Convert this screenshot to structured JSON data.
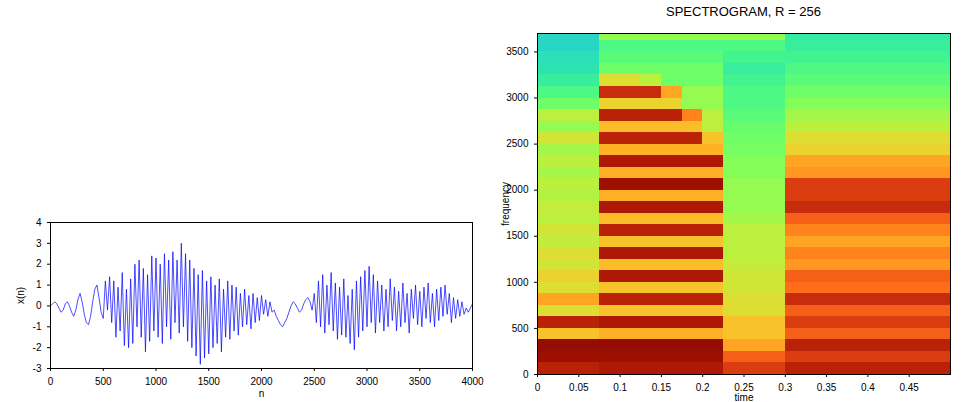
{
  "chart_data": [
    {
      "type": "line",
      "color": "#0000ff",
      "x_label": "n",
      "y_label": "x(n)",
      "xlim": [
        0,
        4000
      ],
      "ylim": [
        -3,
        4
      ],
      "xticks": [
        0,
        500,
        1000,
        1500,
        2000,
        2500,
        3000,
        3500,
        4000
      ],
      "yticks": [
        -3,
        -2,
        -1,
        0,
        1,
        2,
        3,
        4
      ],
      "x": [
        0,
        20,
        40,
        60,
        80,
        100,
        120,
        140,
        160,
        180,
        200,
        220,
        240,
        260,
        280,
        300,
        320,
        340,
        360,
        380,
        400,
        420,
        440,
        460,
        480,
        500,
        520,
        540,
        560,
        580,
        600,
        620,
        640,
        660,
        680,
        700,
        720,
        740,
        760,
        780,
        800,
        820,
        840,
        860,
        880,
        900,
        920,
        940,
        960,
        980,
        1000,
        1020,
        1040,
        1060,
        1080,
        1100,
        1120,
        1140,
        1160,
        1180,
        1200,
        1220,
        1240,
        1260,
        1280,
        1300,
        1320,
        1340,
        1360,
        1380,
        1400,
        1420,
        1440,
        1460,
        1480,
        1500,
        1520,
        1540,
        1560,
        1580,
        1600,
        1620,
        1640,
        1660,
        1680,
        1700,
        1720,
        1740,
        1760,
        1780,
        1800,
        1820,
        1840,
        1860,
        1880,
        1900,
        1920,
        1940,
        1960,
        1980,
        2000,
        2020,
        2040,
        2060,
        2080,
        2100,
        2120,
        2140,
        2160,
        2180,
        2200,
        2220,
        2240,
        2260,
        2280,
        2300,
        2320,
        2340,
        2360,
        2380,
        2400,
        2420,
        2440,
        2460,
        2480,
        2500,
        2520,
        2540,
        2560,
        2580,
        2600,
        2620,
        2640,
        2660,
        2680,
        2700,
        2720,
        2740,
        2760,
        2780,
        2800,
        2820,
        2840,
        2860,
        2880,
        2900,
        2920,
        2940,
        2960,
        2980,
        3000,
        3020,
        3040,
        3060,
        3080,
        3100,
        3120,
        3140,
        3160,
        3180,
        3200,
        3220,
        3240,
        3260,
        3280,
        3300,
        3320,
        3340,
        3360,
        3380,
        3400,
        3420,
        3440,
        3460,
        3480,
        3500,
        3520,
        3540,
        3560,
        3580,
        3600,
        3620,
        3640,
        3660,
        3680,
        3700,
        3720,
        3740,
        3760,
        3780,
        3800,
        3820,
        3840,
        3860,
        3880,
        3900,
        3920,
        3940,
        3960,
        3980,
        4000
      ],
      "values": [
        0,
        0.1,
        0.2,
        0.1,
        -0.1,
        -0.3,
        -0.2,
        0.1,
        0.2,
        0,
        -0.3,
        -0.5,
        -0.2,
        0.3,
        0.6,
        0.2,
        -0.4,
        -0.8,
        -0.9,
        -0.5,
        0.2,
        0.8,
        1.0,
        0.4,
        -0.3,
        -0.6,
        1.2,
        -0.2,
        1.4,
        -0.8,
        1.2,
        -1.5,
        0.9,
        -1.2,
        1.6,
        -1.9,
        0.8,
        -2.0,
        1.3,
        -1.8,
        2.0,
        -1.0,
        2.2,
        -1.5,
        1.8,
        -2.2,
        1.5,
        -1.7,
        2.4,
        -1.2,
        2.3,
        -1.5,
        2.0,
        -1.8,
        2.5,
        -1.0,
        2.2,
        -1.6,
        2.6,
        -0.8,
        2.2,
        -1.3,
        3.0,
        -1.0,
        2.5,
        -1.7,
        2.2,
        -2.0,
        1.8,
        -2.4,
        1.5,
        -2.8,
        1.7,
        -2.5,
        1.2,
        -2.3,
        1.4,
        -2.0,
        1.0,
        -1.8,
        1.3,
        -2.2,
        0.8,
        -1.5,
        1.2,
        -1.6,
        1.0,
        -1.2,
        0.9,
        -1.4,
        0.6,
        -1.0,
        0.8,
        -0.9,
        0.5,
        -1.1,
        0.6,
        -0.8,
        0.4,
        -0.7,
        0.5,
        -0.4,
        0.3,
        -0.5,
        0.2,
        -0.3,
        -0.2,
        -0.5,
        -0.7,
        -0.9,
        -1.0,
        -0.8,
        -0.6,
        -0.3,
        0,
        0.2,
        0.1,
        -0.1,
        -0.3,
        -0.2,
        0.1,
        0.3,
        0.4,
        0.2,
        -0.2,
        0.6,
        -0.8,
        1.2,
        -1.0,
        1.5,
        -1.3,
        1.0,
        -0.9,
        1.6,
        -1.2,
        1.1,
        -1.6,
        0.9,
        -1.4,
        1.3,
        -1.5,
        0.5,
        -1.8,
        0.8,
        -2.1,
        1.2,
        -1.5,
        1.4,
        -1.2,
        1.7,
        -1.0,
        1.9,
        -0.8,
        1.5,
        -1.3,
        1.2,
        -0.8,
        1.0,
        -1.2,
        0.8,
        -1.0,
        1.3,
        -0.7,
        0.9,
        -1.2,
        0.7,
        -1.0,
        1.1,
        -0.8,
        0.6,
        -1.3,
        0.8,
        -0.6,
        1.0,
        -0.9,
        0.7,
        -1.0,
        0.9,
        -0.6,
        1.1,
        -0.8,
        0.6,
        -1.0,
        0.8,
        -0.7,
        0.9,
        -0.5,
        1.0,
        -0.4,
        0.6,
        -0.8,
        0.4,
        -0.6,
        0.3,
        -0.5,
        0.2,
        -0.4,
        -0.1,
        -0.3,
        -0.1,
        0.1
      ]
    },
    {
      "type": "heatmap",
      "title": "SPECTROGRAM, R = 256",
      "x_label": "time",
      "y_label": "frequency",
      "xlim": [
        0,
        0.5
      ],
      "ylim": [
        0,
        3700
      ],
      "xticks": [
        0,
        0.05,
        0.1,
        0.15,
        0.2,
        0.25,
        0.3,
        0.35,
        0.4,
        0.45
      ],
      "yticks": [
        0,
        500,
        1000,
        1500,
        2000,
        2500,
        3000,
        3500
      ],
      "color": "turbo",
      "zlim": [
        0,
        1
      ],
      "time_bins": [
        0,
        0.025,
        0.05,
        0.075,
        0.1,
        0.125,
        0.15,
        0.175,
        0.2,
        0.225,
        0.25,
        0.275,
        0.3,
        0.325,
        0.35,
        0.375,
        0.4,
        0.425,
        0.45,
        0.475,
        0.5
      ],
      "frequency_bins": [
        0,
        125,
        250,
        375,
        500,
        625,
        750,
        875,
        1000,
        1125,
        1250,
        1375,
        1500,
        1625,
        1750,
        1875,
        2000,
        2125,
        2250,
        2375,
        2500,
        2625,
        2750,
        2875,
        3000,
        3125,
        3250,
        3375,
        3500,
        3625,
        3750
      ],
      "levels": [
        [
          0.9,
          0.9,
          0.9,
          0.92,
          0.92,
          0.92,
          0.92,
          0.92,
          0.92,
          0.85,
          0.85,
          0.85,
          0.9,
          0.9,
          0.9,
          0.9,
          0.9,
          0.9,
          0.9,
          0.9
        ],
        [
          0.95,
          0.95,
          0.95,
          0.95,
          0.95,
          0.95,
          0.95,
          0.95,
          0.95,
          0.8,
          0.8,
          0.8,
          0.85,
          0.85,
          0.85,
          0.85,
          0.85,
          0.85,
          0.85,
          0.85
        ],
        [
          0.97,
          0.97,
          0.97,
          0.97,
          0.97,
          0.97,
          0.97,
          0.97,
          0.97,
          0.7,
          0.7,
          0.7,
          0.9,
          0.9,
          0.9,
          0.9,
          0.9,
          0.9,
          0.9,
          0.9
        ],
        [
          0.65,
          0.65,
          0.65,
          0.68,
          0.68,
          0.68,
          0.68,
          0.68,
          0.68,
          0.65,
          0.65,
          0.65,
          0.8,
          0.8,
          0.8,
          0.8,
          0.8,
          0.8,
          0.8,
          0.8
        ],
        [
          0.9,
          0.9,
          0.9,
          0.92,
          0.92,
          0.92,
          0.92,
          0.92,
          0.92,
          0.65,
          0.65,
          0.65,
          0.85,
          0.85,
          0.85,
          0.85,
          0.85,
          0.85,
          0.85,
          0.85
        ],
        [
          0.6,
          0.6,
          0.6,
          0.65,
          0.65,
          0.65,
          0.65,
          0.65,
          0.65,
          0.6,
          0.6,
          0.6,
          0.8,
          0.8,
          0.8,
          0.8,
          0.8,
          0.8,
          0.8,
          0.8
        ],
        [
          0.7,
          0.7,
          0.7,
          0.9,
          0.9,
          0.9,
          0.9,
          0.9,
          0.9,
          0.6,
          0.6,
          0.6,
          0.88,
          0.88,
          0.88,
          0.88,
          0.88,
          0.88,
          0.88,
          0.88
        ],
        [
          0.6,
          0.6,
          0.6,
          0.65,
          0.65,
          0.65,
          0.65,
          0.65,
          0.65,
          0.58,
          0.58,
          0.58,
          0.78,
          0.78,
          0.78,
          0.78,
          0.78,
          0.78,
          0.78,
          0.78
        ],
        [
          0.62,
          0.62,
          0.62,
          0.92,
          0.92,
          0.92,
          0.92,
          0.92,
          0.92,
          0.58,
          0.58,
          0.58,
          0.8,
          0.8,
          0.8,
          0.8,
          0.8,
          0.8,
          0.8,
          0.8
        ],
        [
          0.58,
          0.58,
          0.58,
          0.66,
          0.66,
          0.66,
          0.66,
          0.66,
          0.66,
          0.56,
          0.56,
          0.56,
          0.72,
          0.72,
          0.72,
          0.72,
          0.72,
          0.72,
          0.72,
          0.72
        ],
        [
          0.6,
          0.6,
          0.6,
          0.92,
          0.92,
          0.92,
          0.92,
          0.92,
          0.92,
          0.55,
          0.55,
          0.55,
          0.75,
          0.75,
          0.75,
          0.75,
          0.75,
          0.75,
          0.75,
          0.75
        ],
        [
          0.56,
          0.56,
          0.56,
          0.65,
          0.65,
          0.65,
          0.65,
          0.65,
          0.65,
          0.55,
          0.55,
          0.55,
          0.7,
          0.7,
          0.7,
          0.7,
          0.7,
          0.7,
          0.7,
          0.7
        ],
        [
          0.58,
          0.58,
          0.58,
          0.9,
          0.9,
          0.9,
          0.9,
          0.9,
          0.9,
          0.55,
          0.55,
          0.55,
          0.75,
          0.75,
          0.75,
          0.75,
          0.75,
          0.75,
          0.75,
          0.75
        ],
        [
          0.55,
          0.55,
          0.55,
          0.66,
          0.66,
          0.66,
          0.66,
          0.66,
          0.66,
          0.52,
          0.52,
          0.52,
          0.8,
          0.8,
          0.8,
          0.8,
          0.8,
          0.8,
          0.8,
          0.8
        ],
        [
          0.56,
          0.56,
          0.56,
          0.92,
          0.92,
          0.92,
          0.92,
          0.92,
          0.92,
          0.5,
          0.5,
          0.5,
          0.88,
          0.88,
          0.88,
          0.88,
          0.88,
          0.88,
          0.88,
          0.88
        ],
        [
          0.54,
          0.54,
          0.54,
          0.68,
          0.68,
          0.68,
          0.68,
          0.68,
          0.68,
          0.5,
          0.5,
          0.5,
          0.85,
          0.85,
          0.85,
          0.85,
          0.85,
          0.85,
          0.85,
          0.85
        ],
        [
          0.55,
          0.55,
          0.55,
          0.95,
          0.95,
          0.95,
          0.95,
          0.95,
          0.95,
          0.5,
          0.5,
          0.5,
          0.85,
          0.85,
          0.85,
          0.85,
          0.85,
          0.85,
          0.85,
          0.85
        ],
        [
          0.52,
          0.52,
          0.52,
          0.68,
          0.68,
          0.68,
          0.68,
          0.68,
          0.68,
          0.48,
          0.48,
          0.48,
          0.72,
          0.72,
          0.72,
          0.72,
          0.72,
          0.72,
          0.72,
          0.72
        ],
        [
          0.55,
          0.55,
          0.55,
          0.92,
          0.92,
          0.92,
          0.92,
          0.92,
          0.92,
          0.48,
          0.48,
          0.48,
          0.7,
          0.7,
          0.7,
          0.7,
          0.7,
          0.7,
          0.7,
          0.7
        ],
        [
          0.52,
          0.52,
          0.52,
          0.68,
          0.68,
          0.68,
          0.68,
          0.68,
          0.68,
          0.46,
          0.46,
          0.46,
          0.62,
          0.62,
          0.62,
          0.62,
          0.62,
          0.62,
          0.62,
          0.62
        ],
        [
          0.58,
          0.58,
          0.58,
          0.9,
          0.9,
          0.9,
          0.9,
          0.9,
          0.65,
          0.45,
          0.45,
          0.45,
          0.6,
          0.6,
          0.6,
          0.6,
          0.6,
          0.6,
          0.6,
          0.6
        ],
        [
          0.5,
          0.5,
          0.5,
          0.66,
          0.66,
          0.66,
          0.66,
          0.66,
          0.55,
          0.44,
          0.44,
          0.44,
          0.55,
          0.55,
          0.55,
          0.55,
          0.55,
          0.55,
          0.55,
          0.55
        ],
        [
          0.55,
          0.55,
          0.55,
          0.9,
          0.9,
          0.9,
          0.9,
          0.75,
          0.55,
          0.42,
          0.42,
          0.42,
          0.52,
          0.52,
          0.52,
          0.52,
          0.52,
          0.52,
          0.52,
          0.52
        ],
        [
          0.45,
          0.45,
          0.45,
          0.62,
          0.62,
          0.62,
          0.62,
          0.5,
          0.5,
          0.4,
          0.4,
          0.4,
          0.48,
          0.48,
          0.48,
          0.48,
          0.48,
          0.48,
          0.48,
          0.48
        ],
        [
          0.4,
          0.4,
          0.4,
          0.88,
          0.88,
          0.88,
          0.7,
          0.5,
          0.5,
          0.4,
          0.4,
          0.4,
          0.45,
          0.45,
          0.45,
          0.45,
          0.45,
          0.45,
          0.45,
          0.45
        ],
        [
          0.36,
          0.36,
          0.36,
          0.6,
          0.6,
          0.55,
          0.45,
          0.45,
          0.45,
          0.38,
          0.38,
          0.38,
          0.42,
          0.42,
          0.42,
          0.42,
          0.42,
          0.42,
          0.42,
          0.42
        ],
        [
          0.33,
          0.33,
          0.33,
          0.45,
          0.45,
          0.45,
          0.45,
          0.45,
          0.45,
          0.36,
          0.36,
          0.36,
          0.4,
          0.4,
          0.4,
          0.4,
          0.4,
          0.4,
          0.4,
          0.4
        ],
        [
          0.32,
          0.32,
          0.32,
          0.42,
          0.42,
          0.42,
          0.42,
          0.42,
          0.42,
          0.38,
          0.38,
          0.38,
          0.38,
          0.38,
          0.38,
          0.38,
          0.38,
          0.38,
          0.38,
          0.38
        ],
        [
          0.3,
          0.3,
          0.3,
          0.4,
          0.4,
          0.4,
          0.4,
          0.4,
          0.4,
          0.4,
          0.4,
          0.4,
          0.36,
          0.36,
          0.36,
          0.36,
          0.36,
          0.36,
          0.36,
          0.36
        ],
        [
          0.3,
          0.3,
          0.3,
          0.5,
          0.5,
          0.5,
          0.5,
          0.5,
          0.5,
          0.5,
          0.5,
          0.5,
          0.35,
          0.35,
          0.35,
          0.35,
          0.35,
          0.35,
          0.35,
          0.35
        ]
      ]
    }
  ]
}
